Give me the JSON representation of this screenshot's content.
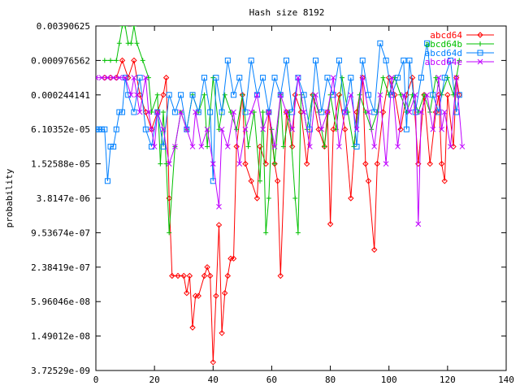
{
  "chart_data": {
    "type": "line",
    "title": "Hash size 8192",
    "xlabel": "",
    "ylabel": "probability",
    "xlim": [
      0,
      140
    ],
    "y_log_base": 2,
    "ylim": [
      3.72529e-09,
      0.00390625
    ],
    "x_ticks": [
      "0",
      "20",
      "40",
      "60",
      "80",
      "100",
      "120",
      "140"
    ],
    "y_ticks": [
      "3.72529e-09",
      "1.49012e-08",
      "5.96046e-08",
      "2.38419e-07",
      "9.53674e-07",
      "3.8147e-06",
      "1.52588e-05",
      "6.10352e-05",
      "0.000244141",
      "0.000976562",
      "0.00390625"
    ],
    "legend_position": "top-right",
    "grid": false,
    "series": [
      {
        "name": "abcd64",
        "color": "#ff0000",
        "marker": "diamond",
        "points": [
          [
            3,
            0.000488
          ],
          [
            5,
            0.000488
          ],
          [
            7,
            0.000488
          ],
          [
            9,
            0.000976562
          ],
          [
            11,
            0.000488
          ],
          [
            13,
            0.000976562
          ],
          [
            15,
            0.000244141
          ],
          [
            17,
            0.000122
          ],
          [
            19,
            6.10352e-05
          ],
          [
            21,
            0.000122
          ],
          [
            23,
            0.000244141
          ],
          [
            24,
            0.000488
          ],
          [
            25,
            3.81e-06
          ],
          [
            26,
            1.68e-07
          ],
          [
            28,
            1.68e-07
          ],
          [
            30,
            1.68e-07
          ],
          [
            31,
            8.4e-08
          ],
          [
            32,
            1.68e-07
          ],
          [
            33,
            2.1e-08
          ],
          [
            34,
            7.5e-08
          ],
          [
            35,
            7.5e-08
          ],
          [
            37,
            1.68e-07
          ],
          [
            38,
            2.38419e-07
          ],
          [
            39,
            1.68e-07
          ],
          [
            40,
            5.2e-09
          ],
          [
            41,
            7.5e-08
          ],
          [
            42,
            1.3e-06
          ],
          [
            43,
            1.68e-08
          ],
          [
            44,
            8.4e-08
          ],
          [
            45,
            1.68e-07
          ],
          [
            46,
            3.37e-07
          ],
          [
            47,
            3.37e-07
          ],
          [
            48,
            3.05e-05
          ],
          [
            50,
            0.000244141
          ],
          [
            51,
            1.52588e-05
          ],
          [
            53,
            7.63e-06
          ],
          [
            55,
            3.81e-06
          ],
          [
            56,
            3.05e-05
          ],
          [
            58,
            1.52588e-05
          ],
          [
            59,
            0.000122
          ],
          [
            61,
            1.52588e-05
          ],
          [
            62,
            7.63e-06
          ],
          [
            63,
            1.68e-07
          ],
          [
            65,
            0.000122
          ],
          [
            67,
            3.05e-05
          ],
          [
            68,
            0.000244141
          ],
          [
            70,
            0.000122
          ],
          [
            72,
            1.52588e-05
          ],
          [
            74,
            0.000244141
          ],
          [
            76,
            6.10352e-05
          ],
          [
            78,
            3.05e-05
          ],
          [
            79,
            0.000122
          ],
          [
            80,
            1.35e-06
          ],
          [
            81,
            6.10352e-05
          ],
          [
            83,
            0.000244141
          ],
          [
            85,
            6.10352e-05
          ],
          [
            87,
            3.81e-06
          ],
          [
            89,
            0.000122
          ],
          [
            91,
            0.000488
          ],
          [
            92,
            1.52588e-05
          ],
          [
            93,
            7.63e-06
          ],
          [
            95,
            4.8e-07
          ],
          [
            96,
            1.52588e-05
          ],
          [
            98,
            0.000122
          ],
          [
            100,
            0.000488
          ],
          [
            102,
            0.000244141
          ],
          [
            104,
            6.10352e-05
          ],
          [
            106,
            0.000244141
          ],
          [
            108,
            0.000488
          ],
          [
            110,
            1.52588e-05
          ],
          [
            112,
            0.000244141
          ],
          [
            114,
            1.52588e-05
          ],
          [
            116,
            0.000122
          ],
          [
            117,
            0.000244141
          ],
          [
            118,
            1.52588e-05
          ],
          [
            119,
            7.63e-06
          ],
          [
            120,
            0.000244141
          ],
          [
            122,
            3.05e-05
          ],
          [
            123,
            0.000488
          ],
          [
            124,
            0.000244141
          ]
        ]
      },
      {
        "name": "abcd64b",
        "color": "#00c000",
        "marker": "plus",
        "points": [
          [
            3,
            0.000976562
          ],
          [
            5,
            0.000976562
          ],
          [
            7,
            0.000976562
          ],
          [
            8,
            0.00195
          ],
          [
            9,
            0.00390625
          ],
          [
            10,
            0.00390625
          ],
          [
            11,
            0.00195
          ],
          [
            12,
            0.00195
          ],
          [
            13,
            0.00390625
          ],
          [
            14,
            0.00195
          ],
          [
            16,
            0.000976562
          ],
          [
            18,
            0.000488
          ],
          [
            19,
            0.000122
          ],
          [
            21,
            0.000244141
          ],
          [
            22,
            1.52588e-05
          ],
          [
            23,
            0.000122
          ],
          [
            24,
            1.52588e-05
          ],
          [
            25,
            9.53674e-07
          ],
          [
            27,
            3.05e-05
          ],
          [
            29,
            0.000122
          ],
          [
            31,
            6.10352e-05
          ],
          [
            33,
            0.000244141
          ],
          [
            35,
            0.000122
          ],
          [
            37,
            0.000244141
          ],
          [
            38,
            3.05e-05
          ],
          [
            40,
            0.000488
          ],
          [
            42,
            6.10352e-05
          ],
          [
            44,
            0.000244141
          ],
          [
            46,
            0.000122
          ],
          [
            48,
            6.10352e-05
          ],
          [
            50,
            0.000244141
          ],
          [
            52,
            3.05e-05
          ],
          [
            54,
            0.000122
          ],
          [
            56,
            7.63e-06
          ],
          [
            57,
            0.000122
          ],
          [
            58,
            9.53674e-07
          ],
          [
            59,
            3.81e-06
          ],
          [
            60,
            6.10352e-05
          ],
          [
            61,
            1.52588e-05
          ],
          [
            63,
            0.000244141
          ],
          [
            64,
            3.05e-05
          ],
          [
            66,
            0.000122
          ],
          [
            68,
            3.81e-06
          ],
          [
            69,
            9.53674e-07
          ],
          [
            70,
            0.000244141
          ],
          [
            72,
            6.10352e-05
          ],
          [
            74,
            0.000244141
          ],
          [
            76,
            0.000122
          ],
          [
            78,
            3.05e-05
          ],
          [
            80,
            0.000244141
          ],
          [
            82,
            6.10352e-05
          ],
          [
            84,
            0.000488
          ],
          [
            86,
            0.000122
          ],
          [
            88,
            3.05e-05
          ],
          [
            90,
            0.000244141
          ],
          [
            92,
            0.000122
          ],
          [
            94,
            6.10352e-05
          ],
          [
            96,
            0.000122
          ],
          [
            98,
            0.000488
          ],
          [
            100,
            0.000244141
          ],
          [
            102,
            0.000488
          ],
          [
            104,
            0.000244141
          ],
          [
            106,
            0.000122
          ],
          [
            108,
            0.000244141
          ],
          [
            110,
            0.000122
          ],
          [
            112,
            0.000244141
          ],
          [
            114,
            0.000122
          ],
          [
            116,
            0.000488
          ],
          [
            118,
            0.000244141
          ],
          [
            120,
            0.000488
          ],
          [
            122,
            0.000244141
          ],
          [
            124,
            0.000976562
          ]
        ]
      },
      {
        "name": "abcd64d",
        "color": "#0080ff",
        "marker": "square",
        "points": [
          [
            0,
            6.10352e-05
          ],
          [
            1,
            6.10352e-05
          ],
          [
            2,
            6.10352e-05
          ],
          [
            3,
            6.10352e-05
          ],
          [
            4,
            7.63e-06
          ],
          [
            5,
            3.05e-05
          ],
          [
            6,
            3.05e-05
          ],
          [
            7,
            6.10352e-05
          ],
          [
            8,
            0.000122
          ],
          [
            9,
            0.000122
          ],
          [
            10,
            0.000488
          ],
          [
            11,
            0.000244141
          ],
          [
            13,
            0.000122
          ],
          [
            15,
            0.000488
          ],
          [
            17,
            6.10352e-05
          ],
          [
            19,
            3.05e-05
          ],
          [
            21,
            0.000122
          ],
          [
            23,
            3.05e-05
          ],
          [
            25,
            0.000244141
          ],
          [
            27,
            0.000122
          ],
          [
            29,
            0.000244141
          ],
          [
            31,
            6.10352e-05
          ],
          [
            33,
            0.000244141
          ],
          [
            35,
            0.000122
          ],
          [
            37,
            0.000488
          ],
          [
            39,
            0.000122
          ],
          [
            40,
            7.63e-06
          ],
          [
            41,
            0.000488
          ],
          [
            43,
            0.000122
          ],
          [
            45,
            0.000976562
          ],
          [
            47,
            0.000244141
          ],
          [
            49,
            0.000488
          ],
          [
            51,
            0.000122
          ],
          [
            53,
            0.000976562
          ],
          [
            55,
            0.000244141
          ],
          [
            57,
            0.000488
          ],
          [
            59,
            0.000122
          ],
          [
            61,
            0.000488
          ],
          [
            63,
            0.000244141
          ],
          [
            65,
            0.000976562
          ],
          [
            67,
            0.000122
          ],
          [
            69,
            0.000488
          ],
          [
            71,
            0.000244141
          ],
          [
            73,
            6.10352e-05
          ],
          [
            75,
            0.000976562
          ],
          [
            77,
            0.000122
          ],
          [
            79,
            0.000488
          ],
          [
            81,
            0.000244141
          ],
          [
            83,
            0.000976562
          ],
          [
            85,
            0.000122
          ],
          [
            87,
            0.000488
          ],
          [
            89,
            3.05e-05
          ],
          [
            91,
            0.000976562
          ],
          [
            93,
            0.000244141
          ],
          [
            95,
            0.000122
          ],
          [
            97,
            0.00195
          ],
          [
            99,
            0.000976562
          ],
          [
            101,
            0.000244141
          ],
          [
            103,
            0.000488
          ],
          [
            105,
            0.000976562
          ],
          [
            106,
            6.10352e-05
          ],
          [
            107,
            0.000976562
          ],
          [
            109,
            0.000122
          ],
          [
            111,
            0.000488
          ],
          [
            113,
            0.00195
          ],
          [
            115,
            0.000244141
          ],
          [
            117,
            0.000122
          ],
          [
            119,
            0.000488
          ],
          [
            121,
            0.000976562
          ],
          [
            123,
            0.000122
          ],
          [
            124,
            0.000244141
          ]
        ]
      },
      {
        "name": "abcd64e",
        "color": "#c000ff",
        "marker": "x",
        "points": [
          [
            0,
            0.000488
          ],
          [
            2,
            0.000488
          ],
          [
            4,
            0.000488
          ],
          [
            6,
            0.000488
          ],
          [
            8,
            0.000488
          ],
          [
            10,
            0.000488
          ],
          [
            12,
            0.000244141
          ],
          [
            13,
            0.000488
          ],
          [
            14,
            0.000244141
          ],
          [
            15,
            0.000122
          ],
          [
            17,
            0.000488
          ],
          [
            18,
            0.000122
          ],
          [
            19,
            6.10352e-05
          ],
          [
            20,
            3.05e-05
          ],
          [
            21,
            0.000122
          ],
          [
            23,
            6.10352e-05
          ],
          [
            25,
            1.52588e-05
          ],
          [
            27,
            3.05e-05
          ],
          [
            29,
            0.000122
          ],
          [
            31,
            6.10352e-05
          ],
          [
            33,
            3.05e-05
          ],
          [
            34,
            0.000122
          ],
          [
            36,
            3.05e-05
          ],
          [
            38,
            6.10352e-05
          ],
          [
            40,
            1.52588e-05
          ],
          [
            42,
            2.72e-06
          ],
          [
            43,
            6.10352e-05
          ],
          [
            45,
            3.05e-05
          ],
          [
            47,
            0.000122
          ],
          [
            49,
            1.52588e-05
          ],
          [
            51,
            6.10352e-05
          ],
          [
            53,
            0.000122
          ],
          [
            55,
            0.000244141
          ],
          [
            57,
            6.10352e-05
          ],
          [
            59,
            0.000122
          ],
          [
            61,
            3.05e-05
          ],
          [
            63,
            0.000244141
          ],
          [
            65,
            0.000122
          ],
          [
            67,
            6.10352e-05
          ],
          [
            69,
            0.000488
          ],
          [
            71,
            0.000122
          ],
          [
            73,
            3.05e-05
          ],
          [
            75,
            0.000244141
          ],
          [
            77,
            6.10352e-05
          ],
          [
            79,
            0.000122
          ],
          [
            81,
            0.000488
          ],
          [
            83,
            3.05e-05
          ],
          [
            85,
            0.000122
          ],
          [
            87,
            0.000244141
          ],
          [
            89,
            6.10352e-05
          ],
          [
            91,
            0.000488
          ],
          [
            93,
            0.000122
          ],
          [
            95,
            3.05e-05
          ],
          [
            97,
            0.000244141
          ],
          [
            99,
            1.52588e-05
          ],
          [
            101,
            0.000488
          ],
          [
            103,
            3.05e-05
          ],
          [
            105,
            0.000244141
          ],
          [
            107,
            0.000122
          ],
          [
            109,
            0.000244141
          ],
          [
            110,
            1.35e-06
          ],
          [
            111,
            0.000122
          ],
          [
            113,
            0.000244141
          ],
          [
            115,
            6.10352e-05
          ],
          [
            117,
            0.000488
          ],
          [
            118,
            6.10352e-05
          ],
          [
            119,
            0.000122
          ],
          [
            121,
            3.05e-05
          ],
          [
            123,
            0.000488
          ],
          [
            125,
            3.05e-05
          ]
        ]
      }
    ]
  }
}
